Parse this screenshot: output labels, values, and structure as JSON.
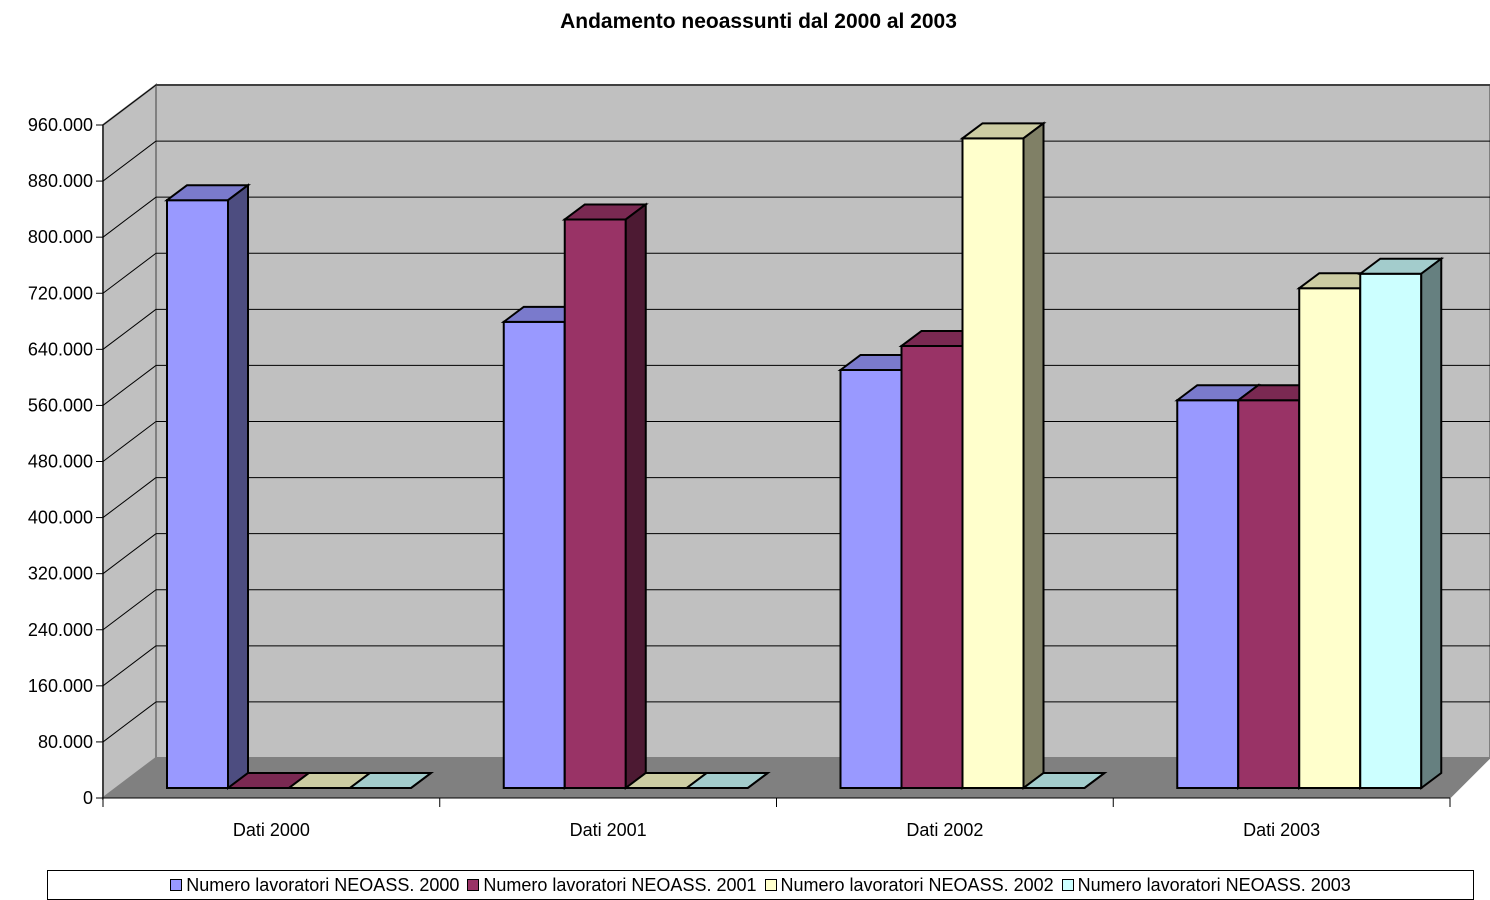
{
  "chart_data": {
    "type": "bar",
    "title": "Andamento neoassunti dal 2000 al 2003",
    "categories": [
      "Dati 2000",
      "Dati 2001",
      "Dati 2002",
      "Dati 2003"
    ],
    "series": [
      {
        "name": "Numero lavoratori NEOASS. 2000",
        "color": "#9999ff",
        "values": [
          855000,
          678000,
          608000,
          564000
        ]
      },
      {
        "name": "Numero lavoratori NEOASS. 2001",
        "color": "#993366",
        "values": [
          0,
          827000,
          643000,
          564000
        ]
      },
      {
        "name": "Numero lavoratori NEOASS. 2002",
        "color": "#ffffcc",
        "values": [
          0,
          0,
          945000,
          727000
        ]
      },
      {
        "name": "Numero lavoratori NEOASS. 2003",
        "color": "#ccffff",
        "values": [
          0,
          0,
          0,
          748000
        ]
      }
    ],
    "yticks": [
      "0",
      "80.000",
      "160.000",
      "240.000",
      "320.000",
      "400.000",
      "480.000",
      "560.000",
      "640.000",
      "720.000",
      "800.000",
      "880.000",
      "960.000"
    ],
    "ylim": [
      0,
      960000
    ],
    "ytick_step": 80000,
    "grid": true,
    "legend_position": "bottom"
  }
}
